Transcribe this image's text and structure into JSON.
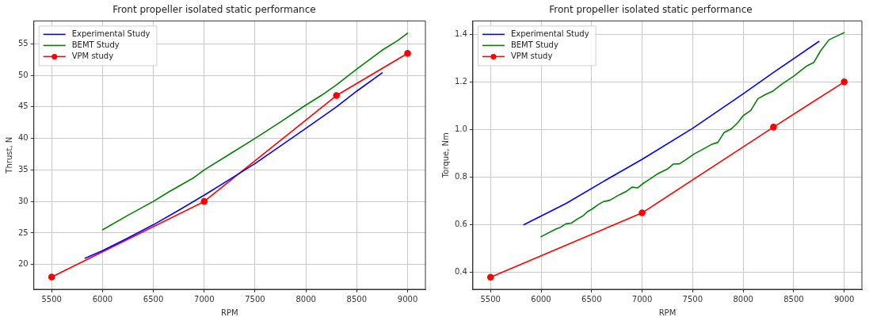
{
  "chart_data": [
    {
      "type": "line",
      "title": "Front propeller isolated static performance",
      "xlabel": "RPM",
      "ylabel": "Thrust, N",
      "xlim": [
        5325,
        9175
      ],
      "xticks": [
        5500,
        6000,
        6500,
        7000,
        7500,
        8000,
        8500,
        9000
      ],
      "ylim": [
        16.06,
        58.64
      ],
      "yticks": [
        20,
        25,
        30,
        35,
        40,
        45,
        50,
        55
      ],
      "grid": true,
      "legend": "top left",
      "series": [
        {
          "name": "Experimental Study",
          "color": "#0000ff",
          "marker": "none",
          "x": [
            5830,
            6000,
            6250,
            6500,
            6750,
            7000,
            7250,
            7500,
            7750,
            8000,
            8300,
            8500,
            8750
          ],
          "values": [
            21.0,
            22.2,
            24.2,
            26.3,
            28.6,
            31.0,
            33.5,
            36.0,
            38.8,
            41.6,
            45.0,
            47.5,
            50.4
          ]
        },
        {
          "name": "BEMT Study",
          "color": "#008000",
          "marker": "none",
          "x": [
            6000,
            6250,
            6500,
            6650,
            6900,
            7000,
            7250,
            7500,
            7750,
            8000,
            8150,
            8300,
            8500,
            8750,
            8900,
            9000
          ],
          "values": [
            25.5,
            27.8,
            30.0,
            31.5,
            33.8,
            35.0,
            37.5,
            40.0,
            42.6,
            45.3,
            46.8,
            48.5,
            51.0,
            54.0,
            55.5,
            56.7
          ]
        },
        {
          "name": "VPM study",
          "color": "#ff0000",
          "marker": "circle",
          "x": [
            5500,
            7000,
            8300,
            9000
          ],
          "values": [
            18.0,
            30.0,
            46.8,
            53.5
          ]
        }
      ]
    },
    {
      "type": "line",
      "title": "Front propeller isolated static performance",
      "xlabel": "RPM",
      "ylabel": "Torque, Nm",
      "xlim": [
        5325,
        9175
      ],
      "xticks": [
        5500,
        6000,
        6500,
        7000,
        7500,
        8000,
        8500,
        9000
      ],
      "ylim": [
        0.329,
        1.456
      ],
      "yticks": [
        0.4,
        0.6,
        0.8,
        {
          "value": 1,
          "label": "1.0"
        },
        1.2,
        1.4
      ],
      "grid": true,
      "legend": "top left",
      "series": [
        {
          "name": "Experimental Study",
          "color": "#0000ff",
          "marker": "none",
          "x": [
            5830,
            6250,
            6650,
            7000,
            7500,
            8000,
            8300,
            8750
          ],
          "values": [
            0.6,
            0.69,
            0.79,
            0.875,
            1.005,
            1.15,
            1.24,
            1.37
          ]
        },
        {
          "name": "BEMT Study",
          "color": "#008000",
          "marker": "none",
          "x": [
            6000,
            6150,
            6190,
            6245,
            6300,
            6355,
            6410,
            6460,
            6505,
            6560,
            6615,
            6680,
            6780,
            6850,
            6900,
            6955,
            7015,
            7080,
            7150,
            7250,
            7310,
            7370,
            7425,
            7510,
            7685,
            7750,
            7810,
            7880,
            7945,
            8000,
            8075,
            8145,
            8220,
            8290,
            8380,
            8500,
            8630,
            8700,
            8765,
            8850,
            9000
          ],
          "values": [
            0.55,
            0.583,
            0.589,
            0.604,
            0.607,
            0.623,
            0.636,
            0.655,
            0.666,
            0.683,
            0.697,
            0.703,
            0.727,
            0.742,
            0.758,
            0.755,
            0.775,
            0.793,
            0.813,
            0.834,
            0.855,
            0.856,
            0.871,
            0.896,
            0.937,
            0.946,
            0.987,
            1.002,
            1.028,
            1.058,
            1.08,
            1.129,
            1.147,
            1.16,
            1.19,
            1.224,
            1.267,
            1.282,
            1.33,
            1.377,
            1.407
          ]
        },
        {
          "name": "VPM study",
          "color": "#ff0000",
          "marker": "circle",
          "x": [
            5500,
            7000,
            8300,
            9000
          ],
          "values": [
            0.38,
            0.65,
            1.01,
            1.2
          ]
        }
      ]
    }
  ]
}
